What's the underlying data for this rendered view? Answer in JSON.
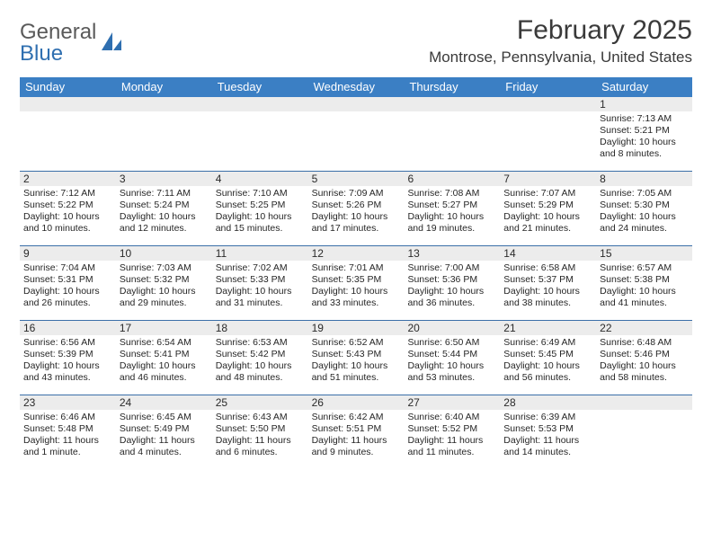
{
  "brand": {
    "text1": "General",
    "text2": "Blue"
  },
  "title": "February 2025",
  "location": "Montrose, Pennsylvania, United States",
  "colors": {
    "header_bar": "#3b7fc4",
    "header_text": "#ffffff",
    "rule": "#3b6fa8",
    "daynum_bg": "#ececec",
    "text": "#262626",
    "brand_gray": "#5a5a5a",
    "brand_blue": "#2f6fb0",
    "bg": "#ffffff"
  },
  "typography": {
    "title_fontsize": 30,
    "location_fontsize": 17,
    "dow_fontsize": 13,
    "daynum_fontsize": 12,
    "cell_fontsize": 10.5
  },
  "daysOfWeek": [
    "Sunday",
    "Monday",
    "Tuesday",
    "Wednesday",
    "Thursday",
    "Friday",
    "Saturday"
  ],
  "weeks": [
    [
      null,
      null,
      null,
      null,
      null,
      null,
      {
        "n": "1",
        "sunrise": "Sunrise: 7:13 AM",
        "sunset": "Sunset: 5:21 PM",
        "dl1": "Daylight: 10 hours",
        "dl2": "and 8 minutes."
      }
    ],
    [
      {
        "n": "2",
        "sunrise": "Sunrise: 7:12 AM",
        "sunset": "Sunset: 5:22 PM",
        "dl1": "Daylight: 10 hours",
        "dl2": "and 10 minutes."
      },
      {
        "n": "3",
        "sunrise": "Sunrise: 7:11 AM",
        "sunset": "Sunset: 5:24 PM",
        "dl1": "Daylight: 10 hours",
        "dl2": "and 12 minutes."
      },
      {
        "n": "4",
        "sunrise": "Sunrise: 7:10 AM",
        "sunset": "Sunset: 5:25 PM",
        "dl1": "Daylight: 10 hours",
        "dl2": "and 15 minutes."
      },
      {
        "n": "5",
        "sunrise": "Sunrise: 7:09 AM",
        "sunset": "Sunset: 5:26 PM",
        "dl1": "Daylight: 10 hours",
        "dl2": "and 17 minutes."
      },
      {
        "n": "6",
        "sunrise": "Sunrise: 7:08 AM",
        "sunset": "Sunset: 5:27 PM",
        "dl1": "Daylight: 10 hours",
        "dl2": "and 19 minutes."
      },
      {
        "n": "7",
        "sunrise": "Sunrise: 7:07 AM",
        "sunset": "Sunset: 5:29 PM",
        "dl1": "Daylight: 10 hours",
        "dl2": "and 21 minutes."
      },
      {
        "n": "8",
        "sunrise": "Sunrise: 7:05 AM",
        "sunset": "Sunset: 5:30 PM",
        "dl1": "Daylight: 10 hours",
        "dl2": "and 24 minutes."
      }
    ],
    [
      {
        "n": "9",
        "sunrise": "Sunrise: 7:04 AM",
        "sunset": "Sunset: 5:31 PM",
        "dl1": "Daylight: 10 hours",
        "dl2": "and 26 minutes."
      },
      {
        "n": "10",
        "sunrise": "Sunrise: 7:03 AM",
        "sunset": "Sunset: 5:32 PM",
        "dl1": "Daylight: 10 hours",
        "dl2": "and 29 minutes."
      },
      {
        "n": "11",
        "sunrise": "Sunrise: 7:02 AM",
        "sunset": "Sunset: 5:33 PM",
        "dl1": "Daylight: 10 hours",
        "dl2": "and 31 minutes."
      },
      {
        "n": "12",
        "sunrise": "Sunrise: 7:01 AM",
        "sunset": "Sunset: 5:35 PM",
        "dl1": "Daylight: 10 hours",
        "dl2": "and 33 minutes."
      },
      {
        "n": "13",
        "sunrise": "Sunrise: 7:00 AM",
        "sunset": "Sunset: 5:36 PM",
        "dl1": "Daylight: 10 hours",
        "dl2": "and 36 minutes."
      },
      {
        "n": "14",
        "sunrise": "Sunrise: 6:58 AM",
        "sunset": "Sunset: 5:37 PM",
        "dl1": "Daylight: 10 hours",
        "dl2": "and 38 minutes."
      },
      {
        "n": "15",
        "sunrise": "Sunrise: 6:57 AM",
        "sunset": "Sunset: 5:38 PM",
        "dl1": "Daylight: 10 hours",
        "dl2": "and 41 minutes."
      }
    ],
    [
      {
        "n": "16",
        "sunrise": "Sunrise: 6:56 AM",
        "sunset": "Sunset: 5:39 PM",
        "dl1": "Daylight: 10 hours",
        "dl2": "and 43 minutes."
      },
      {
        "n": "17",
        "sunrise": "Sunrise: 6:54 AM",
        "sunset": "Sunset: 5:41 PM",
        "dl1": "Daylight: 10 hours",
        "dl2": "and 46 minutes."
      },
      {
        "n": "18",
        "sunrise": "Sunrise: 6:53 AM",
        "sunset": "Sunset: 5:42 PM",
        "dl1": "Daylight: 10 hours",
        "dl2": "and 48 minutes."
      },
      {
        "n": "19",
        "sunrise": "Sunrise: 6:52 AM",
        "sunset": "Sunset: 5:43 PM",
        "dl1": "Daylight: 10 hours",
        "dl2": "and 51 minutes."
      },
      {
        "n": "20",
        "sunrise": "Sunrise: 6:50 AM",
        "sunset": "Sunset: 5:44 PM",
        "dl1": "Daylight: 10 hours",
        "dl2": "and 53 minutes."
      },
      {
        "n": "21",
        "sunrise": "Sunrise: 6:49 AM",
        "sunset": "Sunset: 5:45 PM",
        "dl1": "Daylight: 10 hours",
        "dl2": "and 56 minutes."
      },
      {
        "n": "22",
        "sunrise": "Sunrise: 6:48 AM",
        "sunset": "Sunset: 5:46 PM",
        "dl1": "Daylight: 10 hours",
        "dl2": "and 58 minutes."
      }
    ],
    [
      {
        "n": "23",
        "sunrise": "Sunrise: 6:46 AM",
        "sunset": "Sunset: 5:48 PM",
        "dl1": "Daylight: 11 hours",
        "dl2": "and 1 minute."
      },
      {
        "n": "24",
        "sunrise": "Sunrise: 6:45 AM",
        "sunset": "Sunset: 5:49 PM",
        "dl1": "Daylight: 11 hours",
        "dl2": "and 4 minutes."
      },
      {
        "n": "25",
        "sunrise": "Sunrise: 6:43 AM",
        "sunset": "Sunset: 5:50 PM",
        "dl1": "Daylight: 11 hours",
        "dl2": "and 6 minutes."
      },
      {
        "n": "26",
        "sunrise": "Sunrise: 6:42 AM",
        "sunset": "Sunset: 5:51 PM",
        "dl1": "Daylight: 11 hours",
        "dl2": "and 9 minutes."
      },
      {
        "n": "27",
        "sunrise": "Sunrise: 6:40 AM",
        "sunset": "Sunset: 5:52 PM",
        "dl1": "Daylight: 11 hours",
        "dl2": "and 11 minutes."
      },
      {
        "n": "28",
        "sunrise": "Sunrise: 6:39 AM",
        "sunset": "Sunset: 5:53 PM",
        "dl1": "Daylight: 11 hours",
        "dl2": "and 14 minutes."
      },
      null
    ]
  ]
}
